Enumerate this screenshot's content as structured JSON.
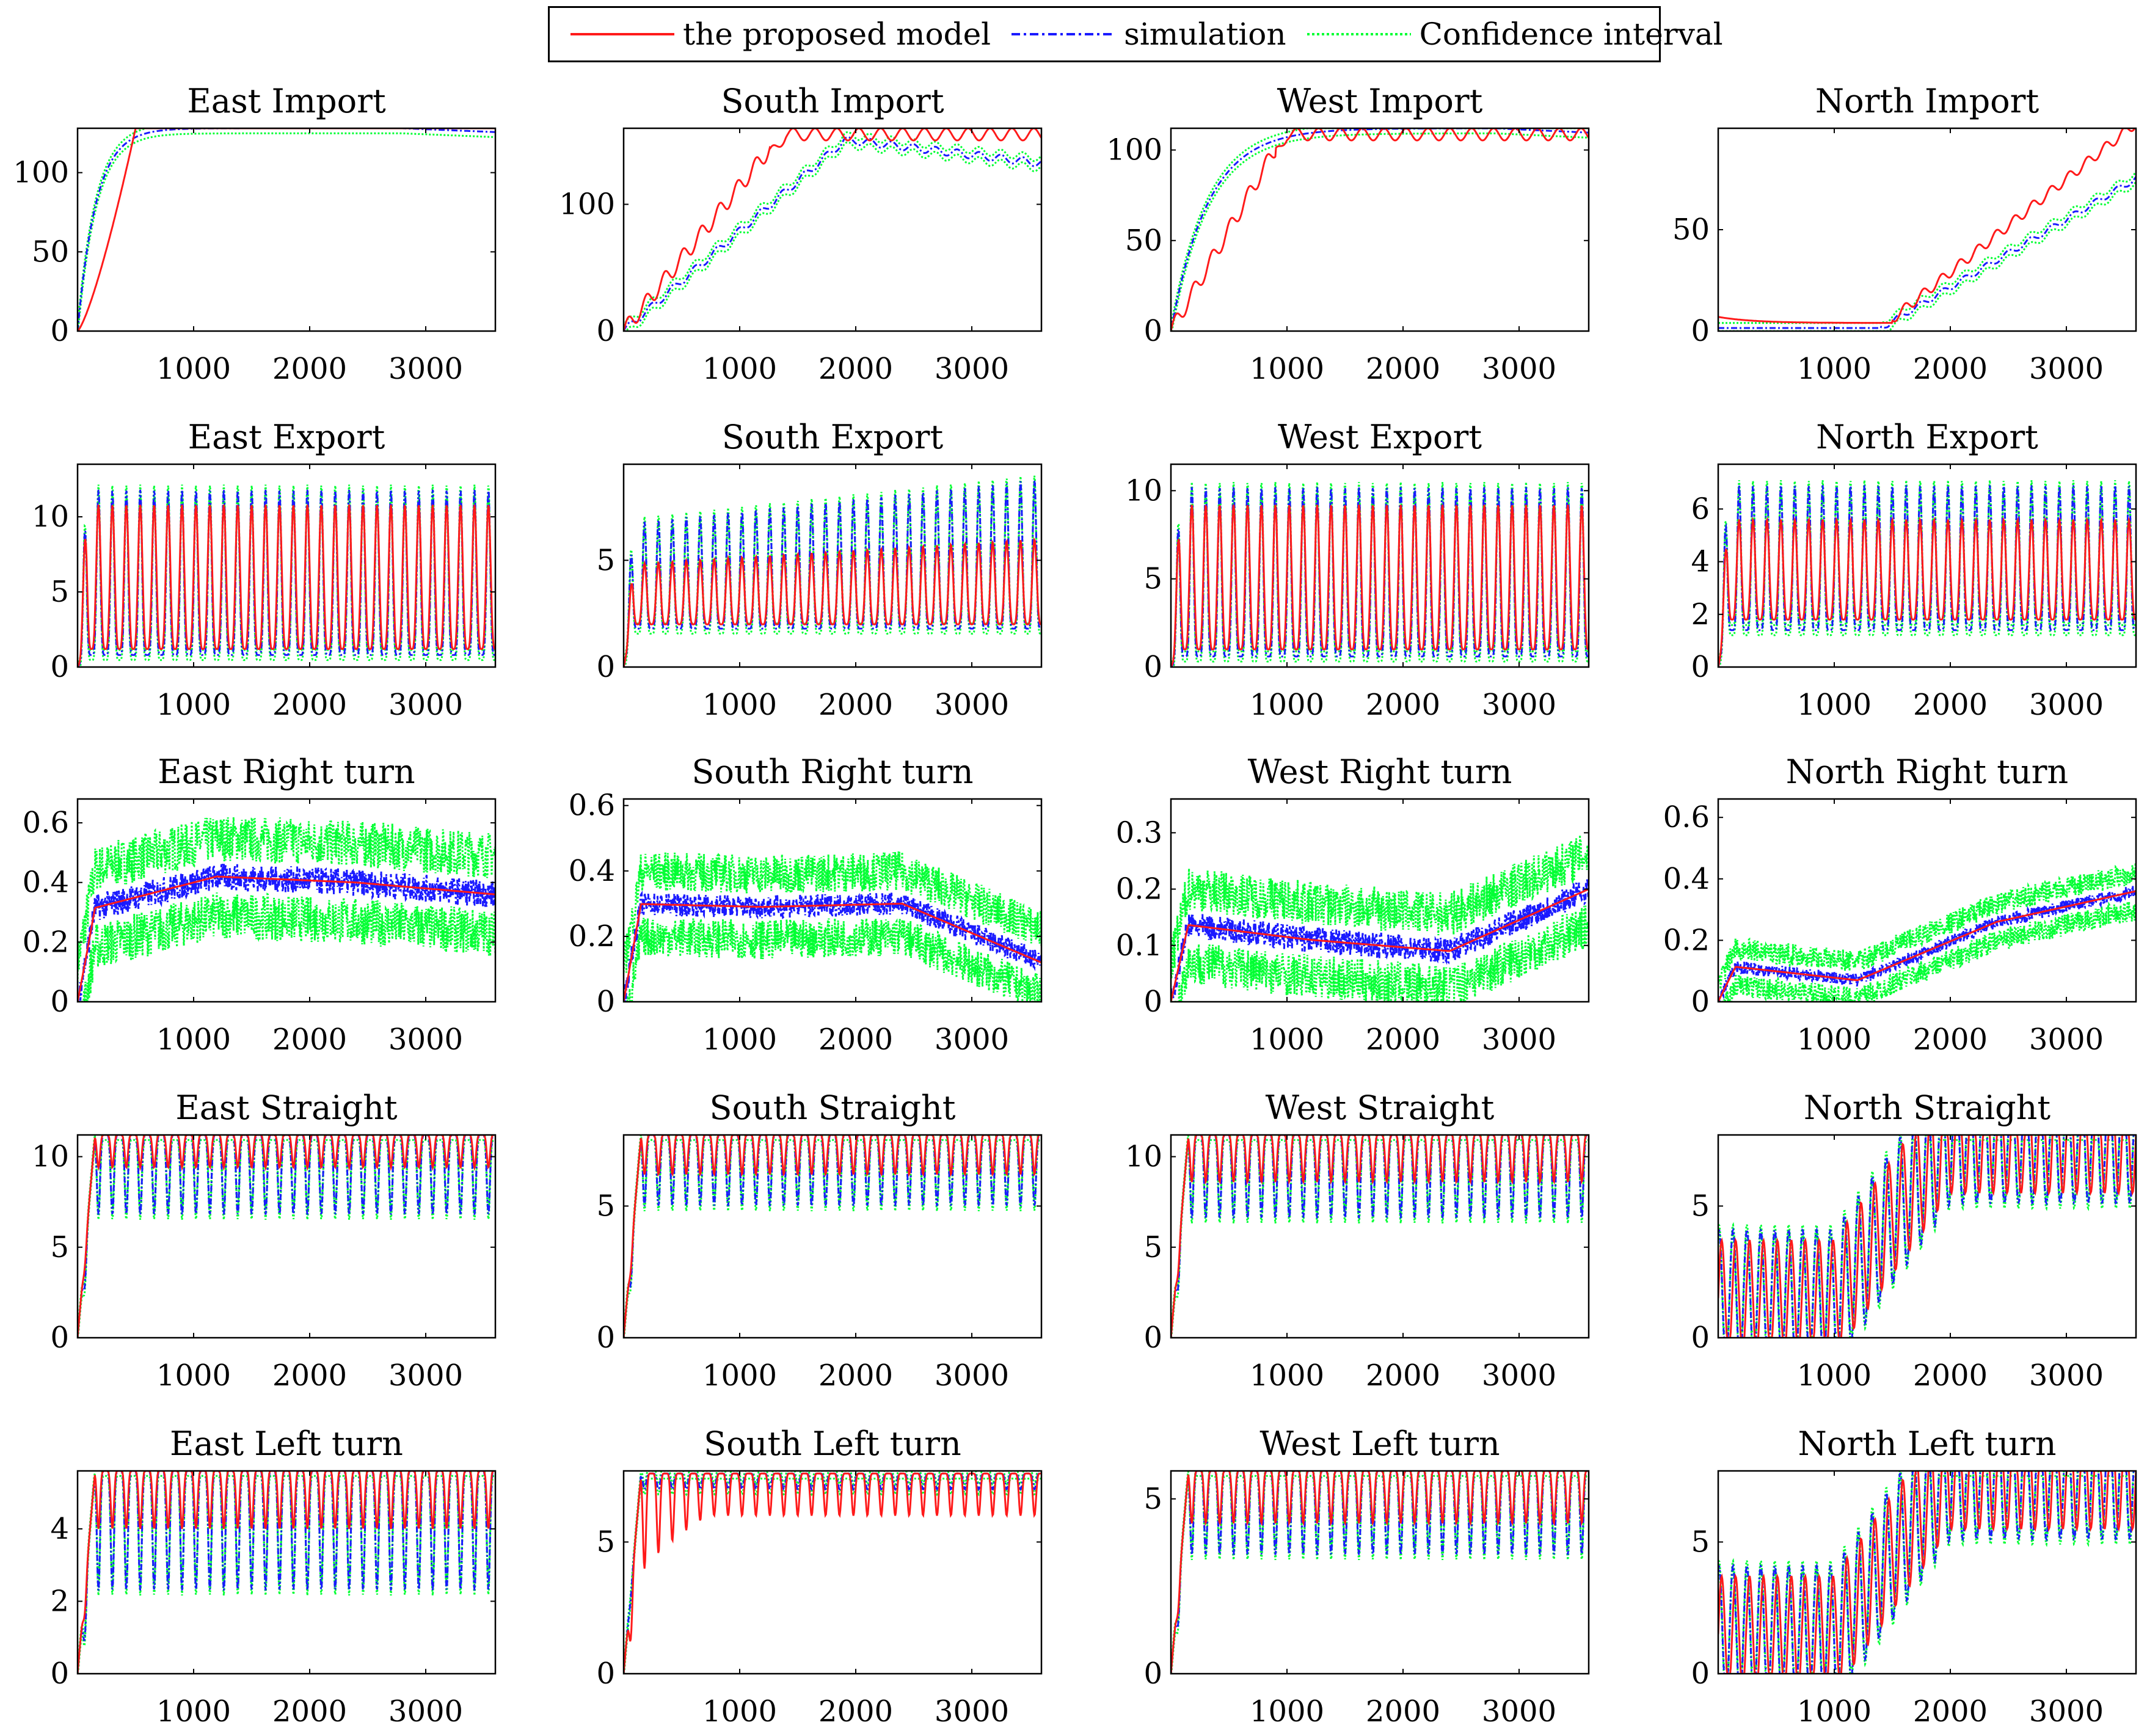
{
  "legend": {
    "items": [
      {
        "label": "the proposed model",
        "color": "#ff1a1a",
        "dash": "solid"
      },
      {
        "label": "simulation",
        "color": "#1a1aff",
        "dash": "dashdot"
      },
      {
        "label": "Confidence interval",
        "color": "#00ff33",
        "dash": "dotted"
      }
    ]
  },
  "chart_data": [
    {
      "type": "line",
      "title": "East Import",
      "xlim": [
        0,
        3600
      ],
      "ylim": [
        0,
        128
      ],
      "xticks": [
        1000,
        2000,
        3000
      ],
      "yticks": [
        0,
        50,
        100
      ],
      "model_shape": "saturate",
      "sim_shape": "saturate_fast",
      "sat": 128,
      "rise": 500,
      "series": [
        {
          "name": "the proposed model"
        },
        {
          "name": "simulation"
        },
        {
          "name": "Confidence interval"
        }
      ]
    },
    {
      "type": "line",
      "title": "South Import",
      "xlim": [
        0,
        3600
      ],
      "ylim": [
        0,
        160
      ],
      "xticks": [
        1000,
        2000,
        3000
      ],
      "yticks": [
        0,
        100
      ],
      "model_shape": "saturate_osc",
      "sim_shape": "rise_fall",
      "sat": 160,
      "rise": 1400,
      "series": [
        {
          "name": "the proposed model"
        },
        {
          "name": "simulation"
        },
        {
          "name": "Confidence interval"
        }
      ]
    },
    {
      "type": "line",
      "title": "West Import",
      "xlim": [
        0,
        3600
      ],
      "ylim": [
        0,
        112
      ],
      "xticks": [
        1000,
        2000,
        3000
      ],
      "yticks": [
        0,
        50,
        100
      ],
      "model_shape": "saturate_osc",
      "sim_shape": "saturate_fast",
      "sat": 112,
      "rise": 1000,
      "series": [
        {
          "name": "the proposed model"
        },
        {
          "name": "simulation"
        },
        {
          "name": "Confidence interval"
        }
      ]
    },
    {
      "type": "line",
      "title": "North Import",
      "xlim": [
        0,
        3600
      ],
      "ylim": [
        0,
        100
      ],
      "xticks": [
        1000,
        2000,
        3000
      ],
      "yticks": [
        0,
        50
      ],
      "model_shape": "late_rise",
      "sim_shape": "late_rise_slow",
      "sat": 100,
      "rise": 1600,
      "series": [
        {
          "name": "the proposed model"
        },
        {
          "name": "simulation"
        },
        {
          "name": "Confidence interval"
        }
      ]
    },
    {
      "type": "line",
      "title": "East Export",
      "xlim": [
        0,
        3600
      ],
      "ylim": [
        0,
        13.5
      ],
      "xticks": [
        1000,
        2000,
        3000
      ],
      "yticks": [
        0,
        5,
        10
      ],
      "model_shape": "spikes",
      "sim_shape": "spikes",
      "peak": 10.8,
      "base": 1.2,
      "sim_peak": 11.8,
      "sim_base": 0.8,
      "series": [
        {
          "name": "the proposed model"
        },
        {
          "name": "simulation"
        },
        {
          "name": "Confidence interval"
        }
      ]
    },
    {
      "type": "line",
      "title": "South Export",
      "xlim": [
        0,
        3600
      ],
      "ylim": [
        0,
        9.5
      ],
      "xticks": [
        1000,
        2000,
        3000
      ],
      "yticks": [
        0,
        5
      ],
      "model_shape": "spikes_growing",
      "sim_shape": "spikes_growing",
      "peak": 6.0,
      "base": 2.0,
      "sim_peak": 8.8,
      "sim_base": 1.8,
      "series": [
        {
          "name": "the proposed model"
        },
        {
          "name": "simulation"
        },
        {
          "name": "Confidence interval"
        }
      ]
    },
    {
      "type": "line",
      "title": "West Export",
      "xlim": [
        0,
        3600
      ],
      "ylim": [
        0,
        11.5
      ],
      "xticks": [
        1000,
        2000,
        3000
      ],
      "yticks": [
        0,
        5,
        10
      ],
      "model_shape": "spikes",
      "sim_shape": "spikes",
      "peak": 9.2,
      "base": 1.0,
      "sim_peak": 10.2,
      "sim_base": 0.6,
      "series": [
        {
          "name": "the proposed model"
        },
        {
          "name": "simulation"
        },
        {
          "name": "Confidence interval"
        }
      ]
    },
    {
      "type": "line",
      "title": "North Export",
      "xlim": [
        0,
        3600
      ],
      "ylim": [
        0,
        7.7
      ],
      "xticks": [
        1000,
        2000,
        3000
      ],
      "yticks": [
        0,
        2,
        4,
        6
      ],
      "model_shape": "spikes",
      "sim_shape": "spikes",
      "peak": 5.6,
      "base": 1.8,
      "sim_peak": 6.9,
      "sim_base": 1.4,
      "series": [
        {
          "name": "the proposed model"
        },
        {
          "name": "simulation"
        },
        {
          "name": "Confidence interval"
        }
      ]
    },
    {
      "type": "line",
      "title": "East Right turn",
      "xlim": [
        0,
        3600
      ],
      "ylim": [
        0,
        0.68
      ],
      "xticks": [
        1000,
        2000,
        3000
      ],
      "yticks": [
        0,
        0.2,
        0.4,
        0.6
      ],
      "model_shape": "noise",
      "sim_shape": "noise",
      "level": [
        0.3,
        0.42,
        0.4,
        0.36
      ],
      "spread": 0.13,
      "series": [
        {
          "name": "the proposed model"
        },
        {
          "name": "simulation"
        },
        {
          "name": "Confidence interval"
        }
      ]
    },
    {
      "type": "line",
      "title": "South Right turn",
      "xlim": [
        0,
        3600
      ],
      "ylim": [
        0,
        0.62
      ],
      "xticks": [
        1000,
        2000,
        3000
      ],
      "yticks": [
        0,
        0.2,
        0.4,
        0.6
      ],
      "model_shape": "noise",
      "sim_shape": "noise",
      "level": [
        0.3,
        0.29,
        0.3,
        0.12
      ],
      "spread": 0.1,
      "series": [
        {
          "name": "the proposed model"
        },
        {
          "name": "simulation"
        },
        {
          "name": "Confidence interval"
        }
      ]
    },
    {
      "type": "line",
      "title": "West Right turn",
      "xlim": [
        0,
        3600
      ],
      "ylim": [
        0,
        0.36
      ],
      "xticks": [
        1000,
        2000,
        3000
      ],
      "yticks": [
        0,
        0.1,
        0.2,
        0.3
      ],
      "model_shape": "noise",
      "sim_shape": "noise",
      "level": [
        0.14,
        0.11,
        0.09,
        0.2
      ],
      "spread": 0.065,
      "series": [
        {
          "name": "the proposed model"
        },
        {
          "name": "simulation"
        },
        {
          "name": "Confidence interval"
        }
      ]
    },
    {
      "type": "line",
      "title": "North Right turn",
      "xlim": [
        0,
        3600
      ],
      "ylim": [
        0,
        0.66
      ],
      "xticks": [
        1000,
        2000,
        3000
      ],
      "yticks": [
        0,
        0.2,
        0.4,
        0.6
      ],
      "model_shape": "noise",
      "sim_shape": "noise",
      "level": [
        0.12,
        0.07,
        0.26,
        0.36
      ],
      "spread": 0.06,
      "series": [
        {
          "name": "the proposed model"
        },
        {
          "name": "simulation"
        },
        {
          "name": "Confidence interval"
        }
      ]
    },
    {
      "type": "line",
      "title": "East Straight",
      "xlim": [
        0,
        3600
      ],
      "ylim": [
        0,
        11.2
      ],
      "xticks": [
        1000,
        2000,
        3000
      ],
      "yticks": [
        0,
        5,
        10
      ],
      "model_shape": "cap_dips",
      "sim_shape": "cap_dips",
      "cap": 11.2,
      "model_dip": 9.4,
      "sim_dip": 6.8,
      "series": [
        {
          "name": "the proposed model"
        },
        {
          "name": "simulation"
        },
        {
          "name": "Confidence interval"
        }
      ]
    },
    {
      "type": "line",
      "title": "South Straight",
      "xlim": [
        0,
        3600
      ],
      "ylim": [
        0,
        7.7
      ],
      "xticks": [
        1000,
        2000,
        3000
      ],
      "yticks": [
        0,
        5
      ],
      "model_shape": "cap_dips",
      "sim_shape": "cap_dips",
      "cap": 7.7,
      "model_dip": 6.2,
      "sim_dip": 5.0,
      "series": [
        {
          "name": "the proposed model"
        },
        {
          "name": "simulation"
        },
        {
          "name": "Confidence interval"
        }
      ]
    },
    {
      "type": "line",
      "title": "West Straight",
      "xlim": [
        0,
        3600
      ],
      "ylim": [
        0,
        11.2
      ],
      "xticks": [
        1000,
        2000,
        3000
      ],
      "yticks": [
        0,
        5,
        10
      ],
      "model_shape": "cap_dips",
      "sim_shape": "cap_dips",
      "cap": 11.2,
      "model_dip": 8.6,
      "sim_dip": 6.6,
      "series": [
        {
          "name": "the proposed model"
        },
        {
          "name": "simulation"
        },
        {
          "name": "Confidence interval"
        }
      ]
    },
    {
      "type": "line",
      "title": "North Straight",
      "xlim": [
        0,
        3600
      ],
      "ylim": [
        0,
        7.7
      ],
      "xticks": [
        1000,
        2000,
        3000
      ],
      "yticks": [
        0,
        5
      ],
      "model_shape": "ramp_osc",
      "sim_shape": "ramp_osc",
      "cap": 7.7,
      "series": [
        {
          "name": "the proposed model"
        },
        {
          "name": "simulation"
        },
        {
          "name": "Confidence interval"
        }
      ]
    },
    {
      "type": "line",
      "title": "East Left turn",
      "xlim": [
        0,
        3600
      ],
      "ylim": [
        0,
        5.6
      ],
      "xticks": [
        1000,
        2000,
        3000
      ],
      "yticks": [
        0,
        2,
        4
      ],
      "model_shape": "cap_dips",
      "sim_shape": "cap_dips",
      "cap": 5.6,
      "model_dip": 4.0,
      "sim_dip": 2.3,
      "series": [
        {
          "name": "the proposed model"
        },
        {
          "name": "simulation"
        },
        {
          "name": "Confidence interval"
        }
      ]
    },
    {
      "type": "line",
      "title": "South Left turn",
      "xlim": [
        0,
        3600
      ],
      "ylim": [
        0,
        7.7
      ],
      "xticks": [
        1000,
        2000,
        3000
      ],
      "yticks": [
        0,
        5
      ],
      "model_shape": "cap_dips_grow",
      "sim_shape": "cap_dips",
      "cap": 7.6,
      "model_dip": 6.0,
      "sim_dip": 7.0,
      "series": [
        {
          "name": "the proposed model"
        },
        {
          "name": "simulation"
        },
        {
          "name": "Confidence interval"
        }
      ]
    },
    {
      "type": "line",
      "title": "West Left turn",
      "xlim": [
        0,
        3600
      ],
      "ylim": [
        0,
        5.8
      ],
      "xticks": [
        1000,
        2000,
        3000
      ],
      "yticks": [
        0,
        5
      ],
      "model_shape": "cap_dips",
      "sim_shape": "cap_dips",
      "cap": 5.8,
      "model_dip": 4.3,
      "sim_dip": 3.4,
      "series": [
        {
          "name": "the proposed model"
        },
        {
          "name": "simulation"
        },
        {
          "name": "Confidence interval"
        }
      ]
    },
    {
      "type": "line",
      "title": "North Left turn",
      "xlim": [
        0,
        3600
      ],
      "ylim": [
        0,
        7.7
      ],
      "xticks": [
        1000,
        2000,
        3000
      ],
      "yticks": [
        0,
        5
      ],
      "model_shape": "ramp_osc",
      "sim_shape": "ramp_osc",
      "cap": 7.7,
      "series": [
        {
          "name": "the proposed model"
        },
        {
          "name": "simulation"
        },
        {
          "name": "Confidence interval"
        }
      ]
    }
  ]
}
